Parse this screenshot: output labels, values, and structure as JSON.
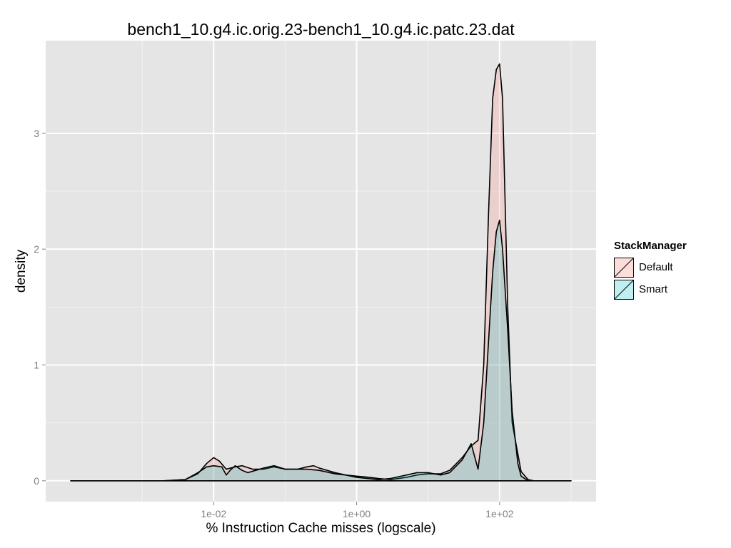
{
  "chart_data": {
    "type": "area",
    "title": "bench1_10.g4.ic.orig.23-bench1_10.g4.ic.patc.23.dat",
    "xlabel": "% Instruction Cache misses (logscale)",
    "ylabel": "density",
    "x_scale": "log10",
    "x_range": [
      0.0001,
      1000
    ],
    "x_ticks": [
      0.01,
      1,
      100
    ],
    "x_tick_labels": [
      "1e-02",
      "1e+00",
      "1e+02"
    ],
    "y_range": [
      -0.18,
      3.8
    ],
    "y_ticks": [
      0,
      1,
      2,
      3
    ],
    "y_tick_labels": [
      "0",
      "1",
      "2",
      "3"
    ],
    "grid": true,
    "legend": {
      "title": "StackManager",
      "position": "right"
    },
    "series": [
      {
        "name": "Default",
        "color": "#F8766D",
        "points": [
          [
            0.0001,
            0
          ],
          [
            0.002,
            0
          ],
          [
            0.004,
            0.01
          ],
          [
            0.006,
            0.06
          ],
          [
            0.008,
            0.15
          ],
          [
            0.01,
            0.2
          ],
          [
            0.012,
            0.17
          ],
          [
            0.015,
            0.1
          ],
          [
            0.02,
            0.12
          ],
          [
            0.025,
            0.13
          ],
          [
            0.035,
            0.1
          ],
          [
            0.05,
            0.1
          ],
          [
            0.07,
            0.12
          ],
          [
            0.1,
            0.1
          ],
          [
            0.15,
            0.1
          ],
          [
            0.2,
            0.12
          ],
          [
            0.25,
            0.13
          ],
          [
            0.3,
            0.11
          ],
          [
            0.5,
            0.07
          ],
          [
            0.7,
            0.05
          ],
          [
            1,
            0.04
          ],
          [
            1.5,
            0.03
          ],
          [
            2,
            0.02
          ],
          [
            3,
            0.01
          ],
          [
            5,
            0.03
          ],
          [
            7,
            0.05
          ],
          [
            10,
            0.06
          ],
          [
            15,
            0.06
          ],
          [
            20,
            0.09
          ],
          [
            30,
            0.2
          ],
          [
            40,
            0.3
          ],
          [
            50,
            0.35
          ],
          [
            60,
            1.0
          ],
          [
            70,
            2.3
          ],
          [
            80,
            3.3
          ],
          [
            90,
            3.55
          ],
          [
            100,
            3.6
          ],
          [
            110,
            3.3
          ],
          [
            130,
            1.5
          ],
          [
            150,
            0.5
          ],
          [
            200,
            0.08
          ],
          [
            250,
            0.01
          ],
          [
            300,
            0
          ],
          [
            1000,
            0
          ]
        ]
      },
      {
        "name": "Smart",
        "color": "#00BFC4",
        "points": [
          [
            0.0001,
            0
          ],
          [
            0.002,
            0
          ],
          [
            0.004,
            0.01
          ],
          [
            0.006,
            0.07
          ],
          [
            0.008,
            0.12
          ],
          [
            0.01,
            0.13
          ],
          [
            0.013,
            0.12
          ],
          [
            0.015,
            0.05
          ],
          [
            0.017,
            0.09
          ],
          [
            0.02,
            0.13
          ],
          [
            0.025,
            0.09
          ],
          [
            0.03,
            0.07
          ],
          [
            0.05,
            0.11
          ],
          [
            0.07,
            0.13
          ],
          [
            0.1,
            0.1
          ],
          [
            0.2,
            0.1
          ],
          [
            0.3,
            0.09
          ],
          [
            0.5,
            0.06
          ],
          [
            0.7,
            0.05
          ],
          [
            1,
            0.03
          ],
          [
            2,
            0.01
          ],
          [
            3,
            0.02
          ],
          [
            5,
            0.05
          ],
          [
            7,
            0.07
          ],
          [
            10,
            0.07
          ],
          [
            15,
            0.05
          ],
          [
            20,
            0.07
          ],
          [
            30,
            0.18
          ],
          [
            40,
            0.32
          ],
          [
            50,
            0.1
          ],
          [
            60,
            0.5
          ],
          [
            70,
            1.2
          ],
          [
            80,
            1.8
          ],
          [
            90,
            2.15
          ],
          [
            100,
            2.25
          ],
          [
            110,
            2.0
          ],
          [
            130,
            1.3
          ],
          [
            150,
            0.6
          ],
          [
            180,
            0.15
          ],
          [
            200,
            0.04
          ],
          [
            250,
            0
          ],
          [
            1000,
            0
          ]
        ]
      }
    ]
  }
}
